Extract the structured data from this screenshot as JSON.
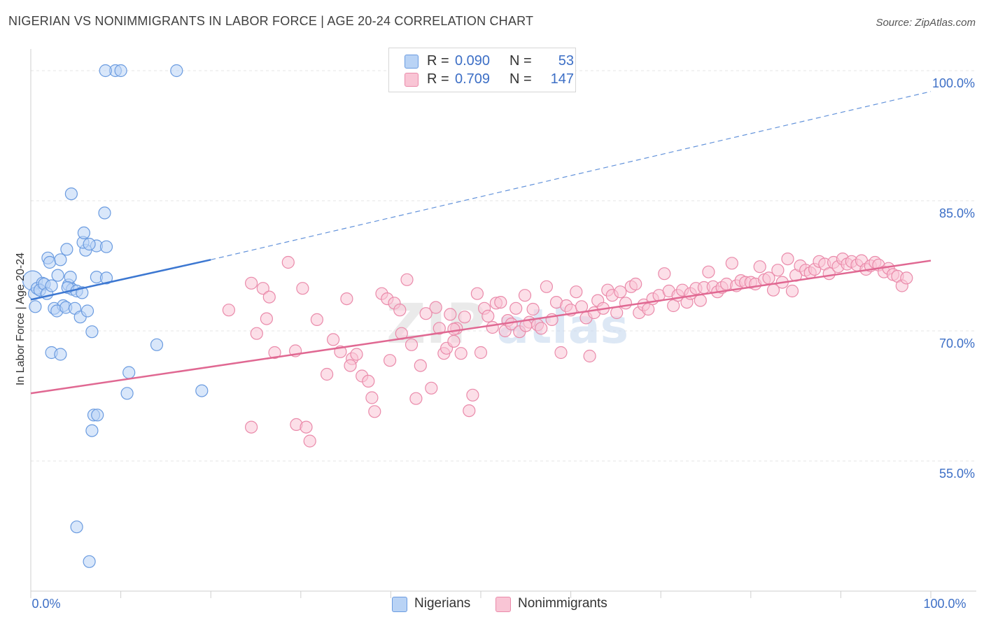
{
  "title": "NIGERIAN VS NONIMMIGRANTS IN LABOR FORCE | AGE 20-24 CORRELATION CHART",
  "source": "Source: ZipAtlas.com",
  "watermark": {
    "zip": "ZIP",
    "atlas": "atlas"
  },
  "stats": [
    {
      "label": "R =",
      "r": "0.090",
      "n_label": "N =",
      "n": "53",
      "fill": "#b9d3f5",
      "stroke": "#6a9be0"
    },
    {
      "label": "R =",
      "r": "0.709",
      "n_label": "N =",
      "n": "147",
      "fill": "#f9c5d5",
      "stroke": "#ea8aaa"
    }
  ],
  "legend": [
    {
      "label": "Nigerians",
      "fill": "#b9d3f5",
      "stroke": "#6a9be0"
    },
    {
      "label": "Nonimmigrants",
      "fill": "#f9c5d5",
      "stroke": "#ea8aaa"
    }
  ],
  "chart_data": {
    "type": "scatter",
    "ylabel": "In Labor Force | Age 20-24",
    "xlim": [
      0,
      100
    ],
    "ylim": [
      40,
      102.5
    ],
    "x_tick_labels": [
      {
        "value": 0,
        "label": "0.0%"
      },
      {
        "value": 100,
        "label": "100.0%"
      }
    ],
    "y_tick_labels": [
      {
        "value": 100,
        "label": "100.0%"
      },
      {
        "value": 85,
        "label": "85.0%"
      },
      {
        "value": 70,
        "label": "70.0%"
      },
      {
        "value": 55,
        "label": "55.0%"
      }
    ],
    "grid": true,
    "colors": {
      "nigerians": "#3c77d1",
      "nonimmigrants": "#e06892",
      "axis_labels": "#3d6fc6"
    },
    "series": [
      {
        "name": "Nigerians",
        "color": "#6a9be0",
        "fill": "#b9d3f5",
        "trend": {
          "x": [
            0,
            20
          ],
          "y": [
            73.6,
            78.2
          ]
        },
        "trend_extension": {
          "x": [
            20,
            100
          ],
          "y": [
            78.2,
            97.6
          ]
        },
        "points": [
          [
            0.2,
            75.8
          ],
          [
            0.4,
            74.3
          ],
          [
            0.7,
            74.9
          ],
          [
            0.5,
            72.8
          ],
          [
            1.3,
            75.5
          ],
          [
            1.0,
            74.7
          ],
          [
            1.5,
            75.4
          ],
          [
            1.8,
            74.3
          ],
          [
            2.3,
            75.2
          ],
          [
            1.9,
            78.4
          ],
          [
            2.1,
            77.9
          ],
          [
            3.3,
            78.2
          ],
          [
            3.0,
            76.4
          ],
          [
            2.6,
            72.6
          ],
          [
            3.6,
            72.9
          ],
          [
            2.9,
            72.3
          ],
          [
            4.2,
            75.3
          ],
          [
            4.4,
            76.2
          ],
          [
            4.6,
            74.8
          ],
          [
            4.1,
            75.0
          ],
          [
            3.9,
            72.7
          ],
          [
            5.1,
            74.6
          ],
          [
            5.7,
            74.4
          ],
          [
            4.9,
            72.6
          ],
          [
            5.5,
            71.6
          ],
          [
            6.3,
            72.3
          ],
          [
            6.8,
            69.9
          ],
          [
            4.0,
            79.4
          ],
          [
            7.3,
            79.8
          ],
          [
            6.1,
            79.3
          ],
          [
            5.8,
            80.2
          ],
          [
            5.9,
            81.3
          ],
          [
            6.5,
            80.0
          ],
          [
            8.4,
            79.7
          ],
          [
            8.2,
            83.6
          ],
          [
            4.5,
            85.8
          ],
          [
            9.4,
            100.0
          ],
          [
            10.0,
            100.0
          ],
          [
            8.3,
            100.0
          ],
          [
            16.2,
            100.0
          ],
          [
            2.3,
            67.5
          ],
          [
            3.3,
            67.3
          ],
          [
            10.9,
            65.2
          ],
          [
            14.0,
            68.4
          ],
          [
            10.7,
            62.8
          ],
          [
            19.0,
            63.1
          ],
          [
            7.0,
            60.3
          ],
          [
            7.4,
            60.3
          ],
          [
            6.8,
            58.5
          ],
          [
            5.1,
            47.4
          ],
          [
            6.5,
            43.4
          ],
          [
            7.3,
            76.2
          ],
          [
            8.4,
            76.1
          ]
        ]
      },
      {
        "name": "Nonimmigrants",
        "color": "#ea8aaa",
        "fill": "#f9c5d5",
        "trend": {
          "x": [
            0,
            100
          ],
          "y": [
            62.8,
            78.1
          ]
        },
        "points": [
          [
            22.0,
            72.4
          ],
          [
            24.5,
            75.5
          ],
          [
            25.1,
            69.7
          ],
          [
            25.8,
            74.9
          ],
          [
            26.2,
            71.4
          ],
          [
            26.5,
            73.9
          ],
          [
            27.1,
            67.5
          ],
          [
            28.6,
            77.9
          ],
          [
            29.4,
            67.7
          ],
          [
            30.2,
            74.9
          ],
          [
            31.8,
            71.3
          ],
          [
            32.9,
            65.0
          ],
          [
            33.6,
            69.0
          ],
          [
            34.4,
            67.6
          ],
          [
            35.1,
            73.7
          ],
          [
            35.7,
            66.8
          ],
          [
            36.2,
            67.3
          ],
          [
            36.8,
            64.8
          ],
          [
            37.5,
            64.2
          ],
          [
            37.9,
            62.3
          ],
          [
            38.2,
            60.7
          ],
          [
            39.0,
            74.3
          ],
          [
            39.6,
            73.7
          ],
          [
            39.9,
            66.6
          ],
          [
            40.4,
            73.2
          ],
          [
            41.0,
            72.4
          ],
          [
            41.2,
            69.7
          ],
          [
            41.8,
            75.9
          ],
          [
            42.3,
            68.4
          ],
          [
            42.8,
            62.2
          ],
          [
            43.3,
            66.0
          ],
          [
            43.9,
            72.0
          ],
          [
            44.5,
            63.4
          ],
          [
            45.0,
            72.7
          ],
          [
            45.4,
            70.3
          ],
          [
            45.9,
            67.4
          ],
          [
            46.2,
            68.0
          ],
          [
            46.6,
            71.9
          ],
          [
            47.0,
            68.8
          ],
          [
            47.3,
            70.3
          ],
          [
            47.8,
            67.4
          ],
          [
            48.2,
            71.6
          ],
          [
            48.7,
            60.8
          ],
          [
            49.1,
            62.6
          ],
          [
            49.6,
            74.3
          ],
          [
            50.0,
            67.5
          ],
          [
            50.4,
            72.6
          ],
          [
            50.8,
            71.7
          ],
          [
            51.3,
            70.4
          ],
          [
            51.7,
            73.2
          ],
          [
            52.2,
            73.3
          ],
          [
            52.7,
            70.0
          ],
          [
            53.0,
            71.2
          ],
          [
            53.4,
            70.8
          ],
          [
            53.9,
            72.6
          ],
          [
            54.3,
            69.9
          ],
          [
            54.9,
            74.1
          ],
          [
            55.4,
            71.0
          ],
          [
            55.8,
            72.5
          ],
          [
            56.3,
            70.7
          ],
          [
            56.7,
            70.3
          ],
          [
            57.3,
            75.1
          ],
          [
            57.9,
            71.3
          ],
          [
            58.4,
            73.3
          ],
          [
            58.9,
            67.5
          ],
          [
            59.5,
            72.9
          ],
          [
            60.0,
            72.4
          ],
          [
            60.6,
            74.5
          ],
          [
            61.2,
            72.8
          ],
          [
            61.7,
            71.5
          ],
          [
            62.1,
            67.1
          ],
          [
            62.6,
            72.1
          ],
          [
            63.0,
            73.5
          ],
          [
            63.6,
            72.6
          ],
          [
            64.1,
            74.7
          ],
          [
            64.6,
            74.1
          ],
          [
            65.1,
            72.1
          ],
          [
            65.5,
            74.5
          ],
          [
            66.1,
            73.2
          ],
          [
            66.7,
            75.1
          ],
          [
            67.2,
            75.4
          ],
          [
            67.6,
            72.1
          ],
          [
            68.1,
            73.0
          ],
          [
            68.6,
            72.5
          ],
          [
            69.1,
            73.7
          ],
          [
            69.8,
            74.1
          ],
          [
            70.4,
            76.6
          ],
          [
            70.9,
            74.6
          ],
          [
            71.4,
            72.9
          ],
          [
            71.9,
            74.1
          ],
          [
            72.4,
            74.7
          ],
          [
            72.9,
            73.3
          ],
          [
            73.3,
            74.3
          ],
          [
            73.9,
            74.9
          ],
          [
            74.4,
            73.5
          ],
          [
            74.8,
            75.0
          ],
          [
            75.3,
            76.8
          ],
          [
            75.8,
            75.1
          ],
          [
            76.3,
            74.5
          ],
          [
            76.8,
            75.0
          ],
          [
            77.3,
            75.4
          ],
          [
            77.9,
            77.8
          ],
          [
            78.4,
            75.2
          ],
          [
            78.9,
            75.8
          ],
          [
            79.4,
            75.6
          ],
          [
            80.0,
            75.6
          ],
          [
            80.5,
            75.4
          ],
          [
            81.0,
            77.4
          ],
          [
            81.5,
            75.9
          ],
          [
            82.0,
            76.1
          ],
          [
            82.5,
            74.7
          ],
          [
            83.0,
            77.0
          ],
          [
            83.5,
            75.6
          ],
          [
            84.1,
            78.3
          ],
          [
            84.6,
            74.6
          ],
          [
            85.0,
            76.4
          ],
          [
            85.5,
            77.5
          ],
          [
            86.1,
            77.0
          ],
          [
            86.6,
            76.7
          ],
          [
            87.1,
            77.1
          ],
          [
            87.6,
            78.0
          ],
          [
            88.2,
            77.7
          ],
          [
            88.7,
            76.6
          ],
          [
            89.2,
            77.9
          ],
          [
            89.7,
            77.4
          ],
          [
            90.2,
            78.3
          ],
          [
            90.7,
            77.7
          ],
          [
            91.2,
            78.0
          ],
          [
            91.8,
            77.6
          ],
          [
            92.3,
            78.1
          ],
          [
            92.8,
            77.1
          ],
          [
            93.3,
            77.5
          ],
          [
            93.8,
            77.9
          ],
          [
            94.2,
            77.6
          ],
          [
            94.8,
            76.8
          ],
          [
            95.3,
            77.2
          ],
          [
            95.8,
            76.5
          ],
          [
            96.3,
            76.3
          ],
          [
            96.8,
            75.2
          ],
          [
            97.3,
            76.1
          ],
          [
            29.5,
            59.2
          ],
          [
            30.6,
            58.9
          ],
          [
            31.0,
            57.3
          ],
          [
            24.5,
            58.9
          ],
          [
            35.5,
            66.0
          ],
          [
            47.0,
            70.2
          ],
          [
            55.0,
            70.6
          ]
        ]
      }
    ]
  }
}
